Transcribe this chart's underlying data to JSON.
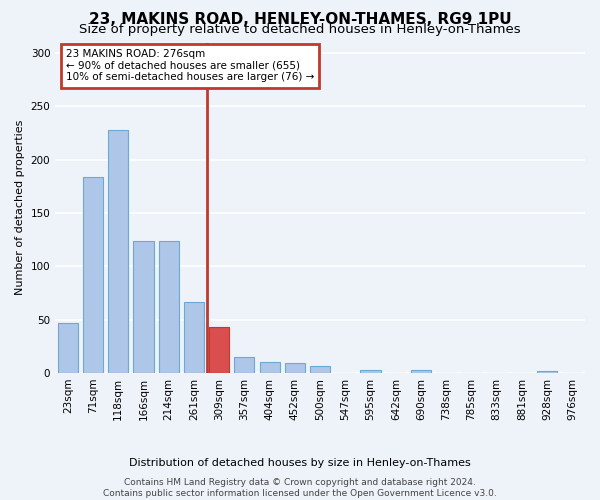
{
  "title": "23, MAKINS ROAD, HENLEY-ON-THAMES, RG9 1PU",
  "subtitle": "Size of property relative to detached houses in Henley-on-Thames",
  "xlabel": "Distribution of detached houses by size in Henley-on-Thames",
  "ylabel": "Number of detached properties",
  "categories": [
    "23sqm",
    "71sqm",
    "118sqm",
    "166sqm",
    "214sqm",
    "261sqm",
    "309sqm",
    "357sqm",
    "404sqm",
    "452sqm",
    "500sqm",
    "547sqm",
    "595sqm",
    "642sqm",
    "690sqm",
    "738sqm",
    "785sqm",
    "833sqm",
    "881sqm",
    "928sqm",
    "976sqm"
  ],
  "values": [
    47,
    184,
    228,
    124,
    124,
    67,
    43,
    15,
    10,
    9,
    7,
    0,
    3,
    0,
    3,
    0,
    0,
    0,
    0,
    2,
    0
  ],
  "bar_color": "#aec6e8",
  "bar_edge_color": "#6aaad4",
  "highlight_bar_index": 6,
  "highlight_bar_color": "#d94f4f",
  "highlight_bar_edge_color": "#c0392b",
  "vline_x_pos": 5.5,
  "vline_color": "#c0392b",
  "annotation_text": "23 MAKINS ROAD: 276sqm\n← 90% of detached houses are smaller (655)\n10% of semi-detached houses are larger (76) →",
  "annotation_box_color": "#c0392b",
  "ylim": [
    0,
    310
  ],
  "yticks": [
    0,
    50,
    100,
    150,
    200,
    250,
    300
  ],
  "footer": "Contains HM Land Registry data © Crown copyright and database right 2024.\nContains public sector information licensed under the Open Government Licence v3.0.",
  "bg_color": "#eef2f9",
  "grid_color": "#ffffff",
  "title_fontsize": 11,
  "subtitle_fontsize": 9.5,
  "ylabel_fontsize": 8,
  "xlabel_fontsize": 8,
  "tick_fontsize": 7.5,
  "annotation_fontsize": 7.5,
  "footer_fontsize": 6.5
}
